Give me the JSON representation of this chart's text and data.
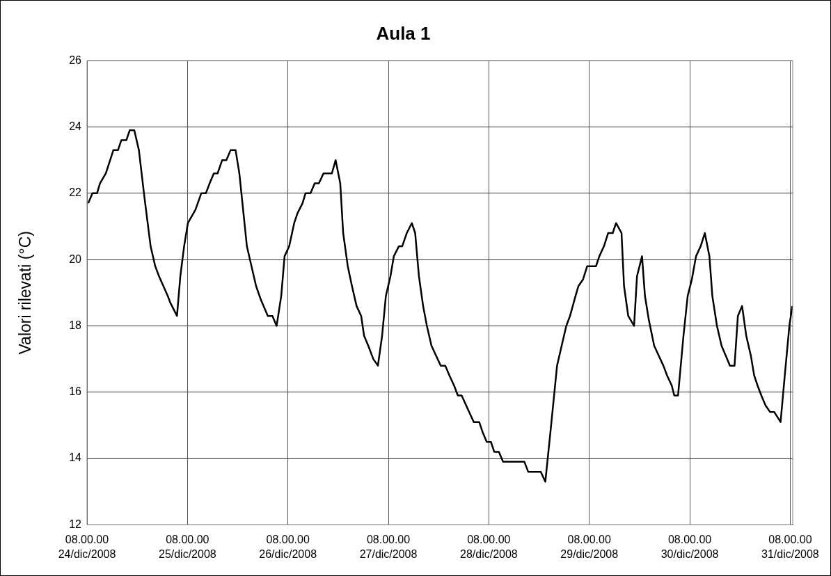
{
  "chart_data": {
    "type": "line",
    "title": "Aula 1",
    "ylabel": "Valori rilevati (°C)",
    "x": [
      "2008-12-24T08:18",
      "2008-12-24T09:18",
      "2008-12-24T10:24",
      "2008-12-24T11:06",
      "2008-12-24T12:30",
      "2008-12-24T14:18",
      "2008-12-24T15:24",
      "2008-12-24T16:12",
      "2008-12-24T17:24",
      "2008-12-24T18:12",
      "2008-12-24T19:18",
      "2008-12-24T20:24",
      "2008-12-24T21:42",
      "2008-12-24T23:12",
      "2008-12-25T00:18",
      "2008-12-25T01:12",
      "2008-12-25T03:18",
      "2008-12-25T03:54",
      "2008-12-25T05:30",
      "2008-12-25T06:18",
      "2008-12-25T07:12",
      "2008-12-25T08:06",
      "2008-12-25T09:54",
      "2008-12-25T11:18",
      "2008-12-25T12:24",
      "2008-12-25T13:18",
      "2008-12-25T14:18",
      "2008-12-25T15:12",
      "2008-12-25T16:18",
      "2008-12-25T17:18",
      "2008-12-25T18:18",
      "2008-12-25T19:30",
      "2008-12-25T20:24",
      "2008-12-25T22:12",
      "2008-12-25T23:18",
      "2008-12-26T00:24",
      "2008-12-26T01:30",
      "2008-12-26T03:12",
      "2008-12-26T04:18",
      "2008-12-26T05:18",
      "2008-12-26T06:24",
      "2008-12-26T07:12",
      "2008-12-26T08:18",
      "2008-12-26T09:30",
      "2008-12-26T10:18",
      "2008-12-26T11:30",
      "2008-12-26T12:12",
      "2008-12-26T13:24",
      "2008-12-26T14:24",
      "2008-12-26T15:24",
      "2008-12-26T16:30",
      "2008-12-26T18:30",
      "2008-12-26T19:24",
      "2008-12-26T20:30",
      "2008-12-26T21:12",
      "2008-12-26T22:18",
      "2008-12-26T23:18",
      "2008-12-27T00:24",
      "2008-12-27T01:30",
      "2008-12-27T02:12",
      "2008-12-27T03:12",
      "2008-12-27T04:24",
      "2008-12-27T05:30",
      "2008-12-27T06:30",
      "2008-12-27T07:24",
      "2008-12-27T08:30",
      "2008-12-27T09:18",
      "2008-12-27T10:30",
      "2008-12-27T11:18",
      "2008-12-27T12:24",
      "2008-12-27T13:36",
      "2008-12-27T14:24",
      "2008-12-27T15:18",
      "2008-12-27T16:18",
      "2008-12-27T17:12",
      "2008-12-27T18:18",
      "2008-12-27T20:30",
      "2008-12-27T21:36",
      "2008-12-27T22:36",
      "2008-12-27T23:42",
      "2008-12-28T00:36",
      "2008-12-28T01:30",
      "2008-12-28T04:24",
      "2008-12-28T05:42",
      "2008-12-28T06:30",
      "2008-12-28T07:30",
      "2008-12-28T08:30",
      "2008-12-28T09:18",
      "2008-12-28T10:24",
      "2008-12-28T11:24",
      "2008-12-28T16:30",
      "2008-12-28T17:24",
      "2008-12-28T20:24",
      "2008-12-28T21:30",
      "2008-12-28T22:48",
      "2008-12-29T00:18",
      "2008-12-29T01:24",
      "2008-12-29T02:30",
      "2008-12-29T03:24",
      "2008-12-29T04:42",
      "2008-12-29T05:24",
      "2008-12-29T06:30",
      "2008-12-29T07:30",
      "2008-12-29T09:36",
      "2008-12-29T10:24",
      "2008-12-29T11:30",
      "2008-12-29T12:30",
      "2008-12-29T13:36",
      "2008-12-29T14:24",
      "2008-12-29T15:42",
      "2008-12-29T16:18",
      "2008-12-29T17:18",
      "2008-12-29T18:42",
      "2008-12-29T19:24",
      "2008-12-29T20:36",
      "2008-12-29T21:18",
      "2008-12-29T22:12",
      "2008-12-29T23:30",
      "2008-12-30T01:42",
      "2008-12-30T02:36",
      "2008-12-30T03:42",
      "2008-12-30T04:18",
      "2008-12-30T05:12",
      "2008-12-30T06:30",
      "2008-12-30T07:30",
      "2008-12-30T08:30",
      "2008-12-30T09:30",
      "2008-12-30T10:36",
      "2008-12-30T11:36",
      "2008-12-30T12:42",
      "2008-12-30T13:24",
      "2008-12-30T14:30",
      "2008-12-30T15:36",
      "2008-12-30T16:36",
      "2008-12-30T17:36",
      "2008-12-30T18:42",
      "2008-12-30T19:30",
      "2008-12-30T20:30",
      "2008-12-30T21:30",
      "2008-12-30T22:36",
      "2008-12-30T23:24",
      "2008-12-31T00:12",
      "2008-12-31T01:06",
      "2008-12-31T02:06",
      "2008-12-31T03:12",
      "2008-12-31T04:12",
      "2008-12-31T05:42",
      "2008-12-31T06:42",
      "2008-12-31T07:48",
      "2008-12-31T08:30"
    ],
    "series": [
      {
        "color": "#000000",
        "values": [
          21.7,
          22.0,
          22.0,
          22.3,
          22.6,
          23.3,
          23.3,
          23.6,
          23.6,
          23.9,
          23.9,
          23.3,
          21.9,
          20.4,
          19.8,
          19.5,
          18.9,
          18.7,
          18.3,
          19.5,
          20.4,
          21.1,
          21.5,
          22.0,
          22.0,
          22.3,
          22.6,
          22.6,
          23.0,
          23.0,
          23.3,
          23.3,
          22.6,
          20.4,
          19.8,
          19.2,
          18.8,
          18.3,
          18.3,
          18.0,
          18.9,
          20.1,
          20.4,
          21.1,
          21.4,
          21.7,
          22.0,
          22.0,
          22.3,
          22.3,
          22.6,
          22.6,
          23.0,
          22.3,
          20.8,
          19.8,
          19.2,
          18.6,
          18.3,
          17.7,
          17.4,
          17.0,
          16.8,
          17.7,
          18.9,
          19.5,
          20.1,
          20.4,
          20.4,
          20.8,
          21.1,
          20.8,
          19.5,
          18.6,
          18.0,
          17.4,
          16.8,
          16.8,
          16.5,
          16.2,
          15.9,
          15.9,
          15.1,
          15.1,
          14.8,
          14.5,
          14.5,
          14.2,
          14.2,
          13.9,
          13.9,
          13.6,
          13.6,
          13.3,
          14.9,
          16.8,
          17.4,
          18.0,
          18.3,
          18.9,
          19.2,
          19.4,
          19.8,
          19.8,
          20.1,
          20.4,
          20.8,
          20.8,
          21.1,
          20.8,
          19.2,
          18.3,
          18.0,
          19.5,
          20.1,
          18.9,
          18.2,
          17.4,
          16.8,
          16.5,
          16.2,
          15.9,
          15.9,
          17.7,
          18.9,
          19.4,
          20.1,
          20.4,
          20.8,
          20.1,
          18.9,
          18.0,
          17.4,
          17.1,
          16.8,
          16.8,
          18.3,
          18.6,
          17.7,
          17.1,
          16.5,
          16.2,
          15.9,
          15.6,
          15.4,
          15.4,
          15.1,
          16.5,
          18.0,
          18.6
        ]
      }
    ],
    "xlim": [
      "2008-12-24T08:00",
      "2008-12-31T08:36"
    ],
    "xticks": [
      {
        "value": "2008-12-24T08:00",
        "label": "08.00.00\n24/dic/2008"
      },
      {
        "value": "2008-12-25T08:00",
        "label": "08.00.00\n25/dic/2008"
      },
      {
        "value": "2008-12-26T08:00",
        "label": "08.00.00\n26/dic/2008"
      },
      {
        "value": "2008-12-27T08:00",
        "label": "08.00.00\n27/dic/2008"
      },
      {
        "value": "2008-12-28T08:00",
        "label": "08.00.00\n28/dic/2008"
      },
      {
        "value": "2008-12-29T08:00",
        "label": "08.00.00\n29/dic/2008"
      },
      {
        "value": "2008-12-30T08:00",
        "label": "08.00.00\n30/dic/2008"
      },
      {
        "value": "2008-12-31T08:00",
        "label": "08.00.00\n31/dic/2008"
      }
    ],
    "ylim": [
      12,
      26
    ],
    "yticks": [
      12,
      14,
      16,
      18,
      20,
      22,
      24,
      26
    ],
    "grid": true,
    "legend": false,
    "marker": "none",
    "line_style": "solid"
  }
}
